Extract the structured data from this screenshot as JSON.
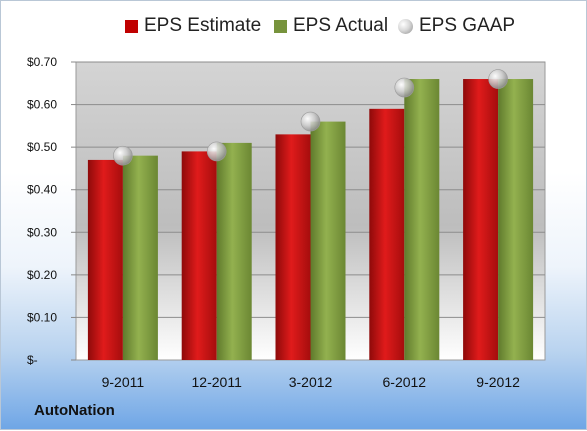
{
  "company": "AutoNation",
  "colors": {
    "estimate": "#c00000",
    "actual": "#77933c",
    "gaap": "#bfbfbf"
  },
  "chart_data": {
    "type": "bar",
    "categories": [
      "9-2011",
      "12-2011",
      "3-2012",
      "6-2012",
      "9-2012"
    ],
    "series": [
      {
        "name": "EPS Estimate",
        "values": [
          0.47,
          0.49,
          0.53,
          0.59,
          0.66
        ]
      },
      {
        "name": "EPS Actual",
        "values": [
          0.48,
          0.51,
          0.56,
          0.66,
          0.66
        ]
      },
      {
        "name": "EPS GAAP",
        "values": [
          0.48,
          0.49,
          0.56,
          0.64,
          0.66
        ]
      }
    ],
    "yticks": [
      "$-",
      "$0.10",
      "$0.20",
      "$0.30",
      "$0.40",
      "$0.50",
      "$0.60",
      "$0.70"
    ],
    "ylim": [
      0,
      0.7
    ],
    "grid": true,
    "legend": "top"
  }
}
